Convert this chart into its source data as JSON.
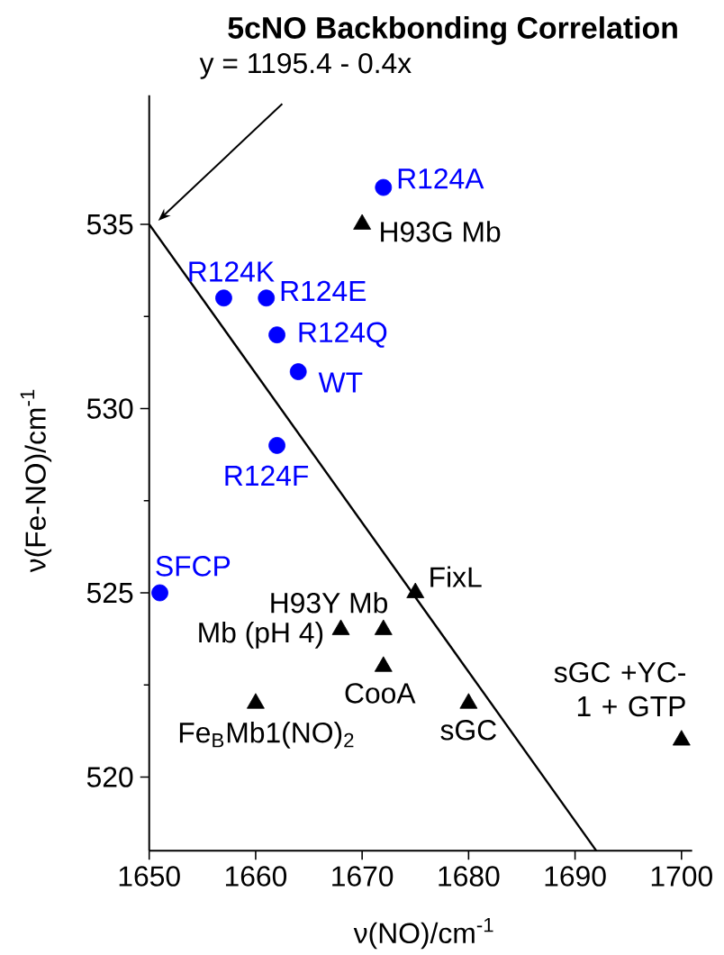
{
  "chart_data": {
    "type": "scatter",
    "title": "5cNO Backbonding Correlation",
    "xlabel": "ν(NO)/cm$^{-1}$",
    "ylabel": "ν(Fe-NO)/cm$^{-1}$",
    "xlim": [
      1650,
      1701
    ],
    "ylim": [
      518,
      538.5
    ],
    "xticks": [
      1650,
      1660,
      1670,
      1680,
      1690,
      1700
    ],
    "yticks": [
      520,
      525,
      530,
      535
    ],
    "series": [
      {
        "color": "#0000ff",
        "marker": "circle",
        "x": [
          1672,
          1657,
          1661,
          1662,
          1664,
          1662,
          1651
        ],
        "values": [
          536,
          533,
          533,
          532,
          531,
          529,
          525
        ]
      },
      {
        "color": "#000000",
        "marker": "triangle",
        "x": [
          1670,
          1675,
          1672,
          1668,
          1672,
          1660,
          1680,
          1700
        ],
        "values": [
          535,
          525,
          524,
          524,
          523,
          522,
          522,
          521
        ]
      },
      {
        "type": "line",
        "color": "#000000",
        "marker": "none",
        "line_style": "solid",
        "x": [
          1650,
          1692
        ],
        "values": [
          535,
          518
        ]
      }
    ],
    "annotations": [
      "y = 1195.4 - 0.4x",
      {
        "text": "R124A",
        "x": 1672,
        "y": 536
      },
      {
        "text": "R124K",
        "x": 1657,
        "y": 533
      },
      {
        "text": "R124E",
        "x": 1661,
        "y": 533
      },
      {
        "text": "R124Q",
        "x": 1662,
        "y": 532
      },
      {
        "text": "WT",
        "x": 1664,
        "y": 531
      },
      {
        "text": "R124F",
        "x": 1662,
        "y": 529
      },
      {
        "text": "SFCP",
        "x": 1651,
        "y": 525
      },
      {
        "text": "H93G Mb",
        "x": 1670,
        "y": 535
      },
      {
        "text": "FixL",
        "x": 1675,
        "y": 525
      },
      {
        "text": "H93Y Mb",
        "x": 1672,
        "y": 524
      },
      {
        "text": "Mb (pH 4)",
        "x": 1668,
        "y": 524
      },
      {
        "text": "CooA",
        "x": 1672,
        "y": 523
      },
      {
        "text": "Fe$_{B}$Mb1(NO)$_{2}$",
        "x": 1660,
        "y": 522
      },
      {
        "text": "sGC",
        "x": 1680,
        "y": 522
      },
      {
        "text": "sGC +YC-1 + GTP",
        "x": 1700,
        "y": 521
      }
    ]
  }
}
